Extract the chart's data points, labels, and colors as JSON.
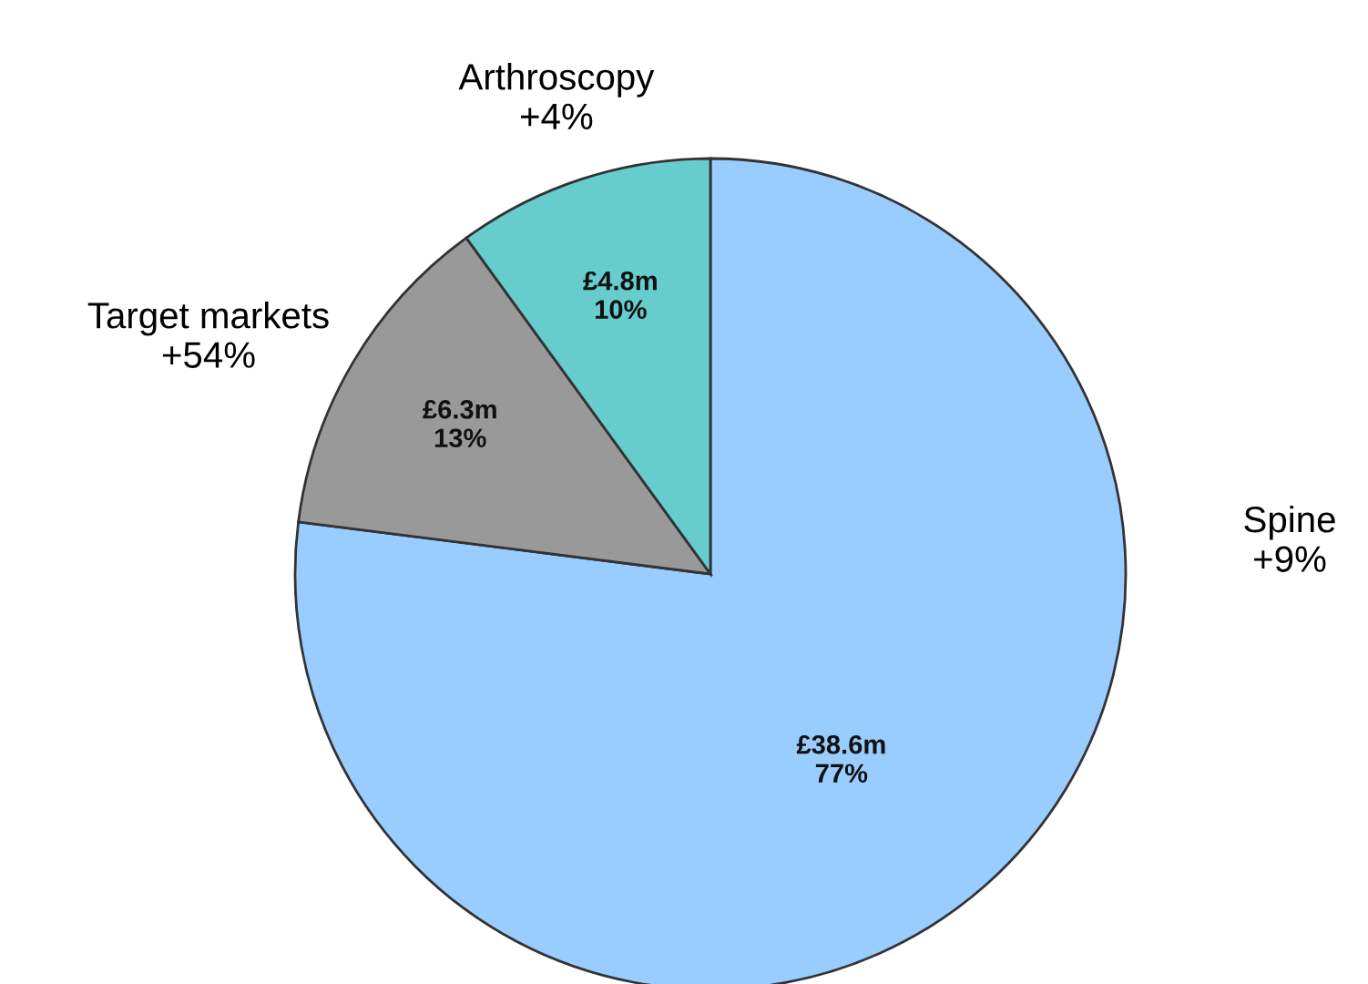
{
  "chart_data": {
    "type": "pie",
    "categories": [
      "Spine",
      "Target markets",
      "Arthroscopy"
    ],
    "values": [
      77,
      13,
      10
    ],
    "colors": [
      "#99ccff",
      "#999999",
      "#66cccc"
    ],
    "value_labels": [
      "£38.6m\n77%",
      "£6.3m\n13%",
      "£4.8m\n10%"
    ],
    "annotations": [
      {
        "text": "+9%",
        "x": "Spine"
      },
      {
        "text": "+54%",
        "x": "Target markets"
      },
      {
        "text": "+4%",
        "x": "Arthroscopy"
      }
    ],
    "legend": false
  }
}
